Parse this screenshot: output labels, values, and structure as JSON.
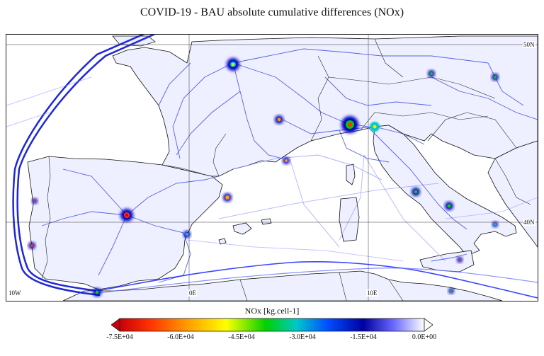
{
  "figure": {
    "title": "COVID-19 - BAU absolute cumulative differences (NOx)"
  },
  "map": {
    "region": "Western Mediterranean / South-West Europe",
    "grid_labels": {
      "lon_10w": "10W",
      "lon_0e": "0E",
      "lon_10e": "10E",
      "lat_40n": "40N",
      "lat_50n": "50N"
    }
  },
  "colorbar": {
    "title": "NOx [kg.cell-1]",
    "tick_labels": [
      "-7.5E+04",
      "-6.0E+04",
      "-4.5E+04",
      "-3.0E+04",
      "-1.5E+04",
      "0.0E+00"
    ],
    "colors": [
      "#c8000a",
      "#ff3300",
      "#ff9a00",
      "#ffff00",
      "#00d000",
      "#00c8c8",
      "#0050ff",
      "#0000a0",
      "#ffffff"
    ]
  }
}
